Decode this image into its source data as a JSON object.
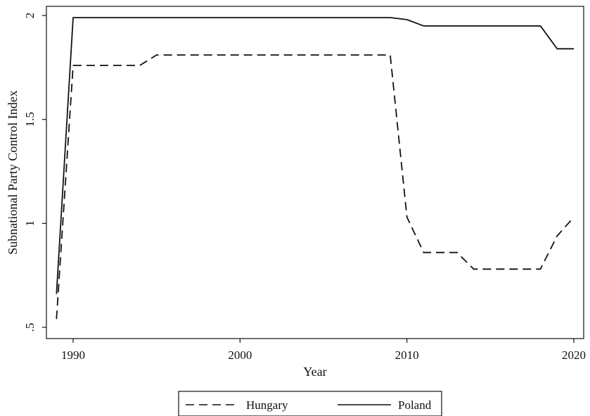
{
  "chart_data": {
    "type": "line",
    "title": "",
    "xlabel": "Year",
    "ylabel": "Subnational Party Control Index",
    "xlim": [
      1989,
      2020
    ],
    "ylim": [
      0.5,
      2
    ],
    "xticks": [
      1990,
      2000,
      2010,
      2020
    ],
    "xtick_labels": [
      "1990",
      "2000",
      "2010",
      "2020"
    ],
    "yticks": [
      0.5,
      1,
      1.5,
      2
    ],
    "ytick_labels": [
      ".5",
      "1",
      "1.5",
      "2"
    ],
    "grid": false,
    "legend": "bottom",
    "x": [
      1989,
      1990,
      1991,
      1992,
      1993,
      1994,
      1995,
      1996,
      1997,
      1998,
      1999,
      2000,
      2001,
      2002,
      2003,
      2004,
      2005,
      2006,
      2007,
      2008,
      2009,
      2010,
      2011,
      2012,
      2013,
      2014,
      2015,
      2016,
      2017,
      2018,
      2019,
      2020
    ],
    "series": [
      {
        "name": "Hungary",
        "style": "dashed",
        "color": "#111111",
        "values": [
          0.54,
          1.76,
          1.76,
          1.76,
          1.76,
          1.76,
          1.81,
          1.81,
          1.81,
          1.81,
          1.81,
          1.81,
          1.81,
          1.81,
          1.81,
          1.81,
          1.81,
          1.81,
          1.81,
          1.81,
          1.81,
          1.03,
          0.86,
          0.86,
          0.86,
          0.78,
          0.78,
          0.78,
          0.78,
          0.78,
          0.94,
          1.03
        ]
      },
      {
        "name": "Poland",
        "style": "solid",
        "color": "#111111",
        "values": [
          0.66,
          1.99,
          1.99,
          1.99,
          1.99,
          1.99,
          1.99,
          1.99,
          1.99,
          1.99,
          1.99,
          1.99,
          1.99,
          1.99,
          1.99,
          1.99,
          1.99,
          1.99,
          1.99,
          1.99,
          1.99,
          1.98,
          1.95,
          1.95,
          1.95,
          1.95,
          1.95,
          1.95,
          1.95,
          1.95,
          1.84,
          1.84
        ]
      }
    ]
  }
}
